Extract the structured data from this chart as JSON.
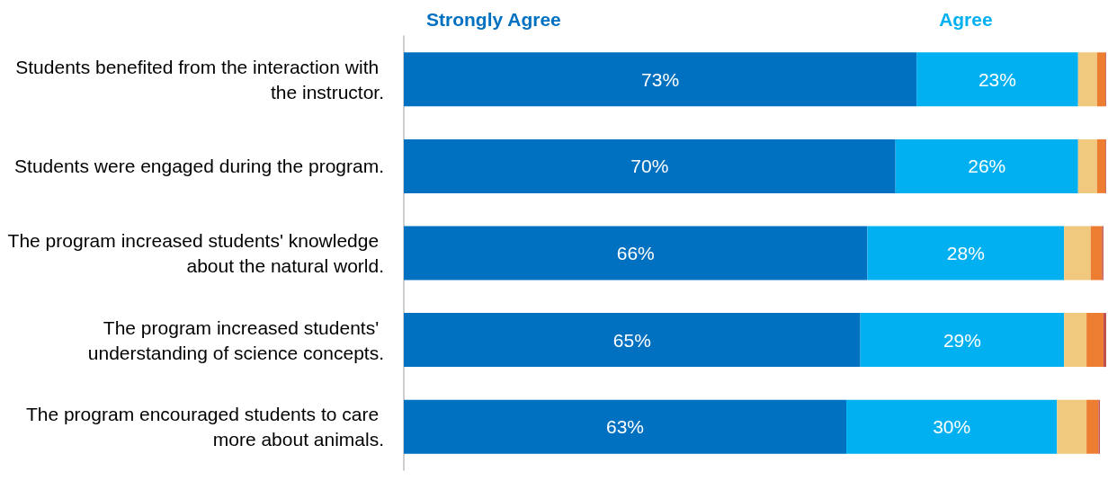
{
  "chart_data": {
    "type": "bar",
    "orientation": "horizontal",
    "stacked": true,
    "legend": "top",
    "categories": [
      "Students benefited from the interaction with the instructor.",
      "Students were engaged during the program.",
      "The program increased students' knowledge about the natural world.",
      "The program increased students' understanding of science concepts.",
      "The program encouraged students to care more about animals."
    ],
    "xlim": [
      0,
      100
    ],
    "series": [
      {
        "name": "Strongly Agree",
        "color": "#0070c0",
        "values": [
          73,
          70,
          66,
          65,
          63
        ],
        "value_labels": [
          "73%",
          "70%",
          "66%",
          "65%",
          "63%"
        ]
      },
      {
        "name": "Agree",
        "color": "#00b0f0",
        "values": [
          23,
          26,
          28,
          29,
          30
        ],
        "value_labels": [
          "23%",
          "26%",
          "28%",
          "29%",
          "30%"
        ]
      },
      {
        "color": "#f0c87e",
        "values": [
          2.7,
          2.7,
          3.8,
          3.2,
          4.2
        ]
      },
      {
        "color": "#ed7d31",
        "values": [
          1.2,
          1.2,
          1.6,
          2.4,
          1.7
        ]
      },
      {
        "color": "#c0504d",
        "values": [
          0.3,
          0.3,
          0.2,
          0.5,
          0.2
        ]
      }
    ]
  }
}
